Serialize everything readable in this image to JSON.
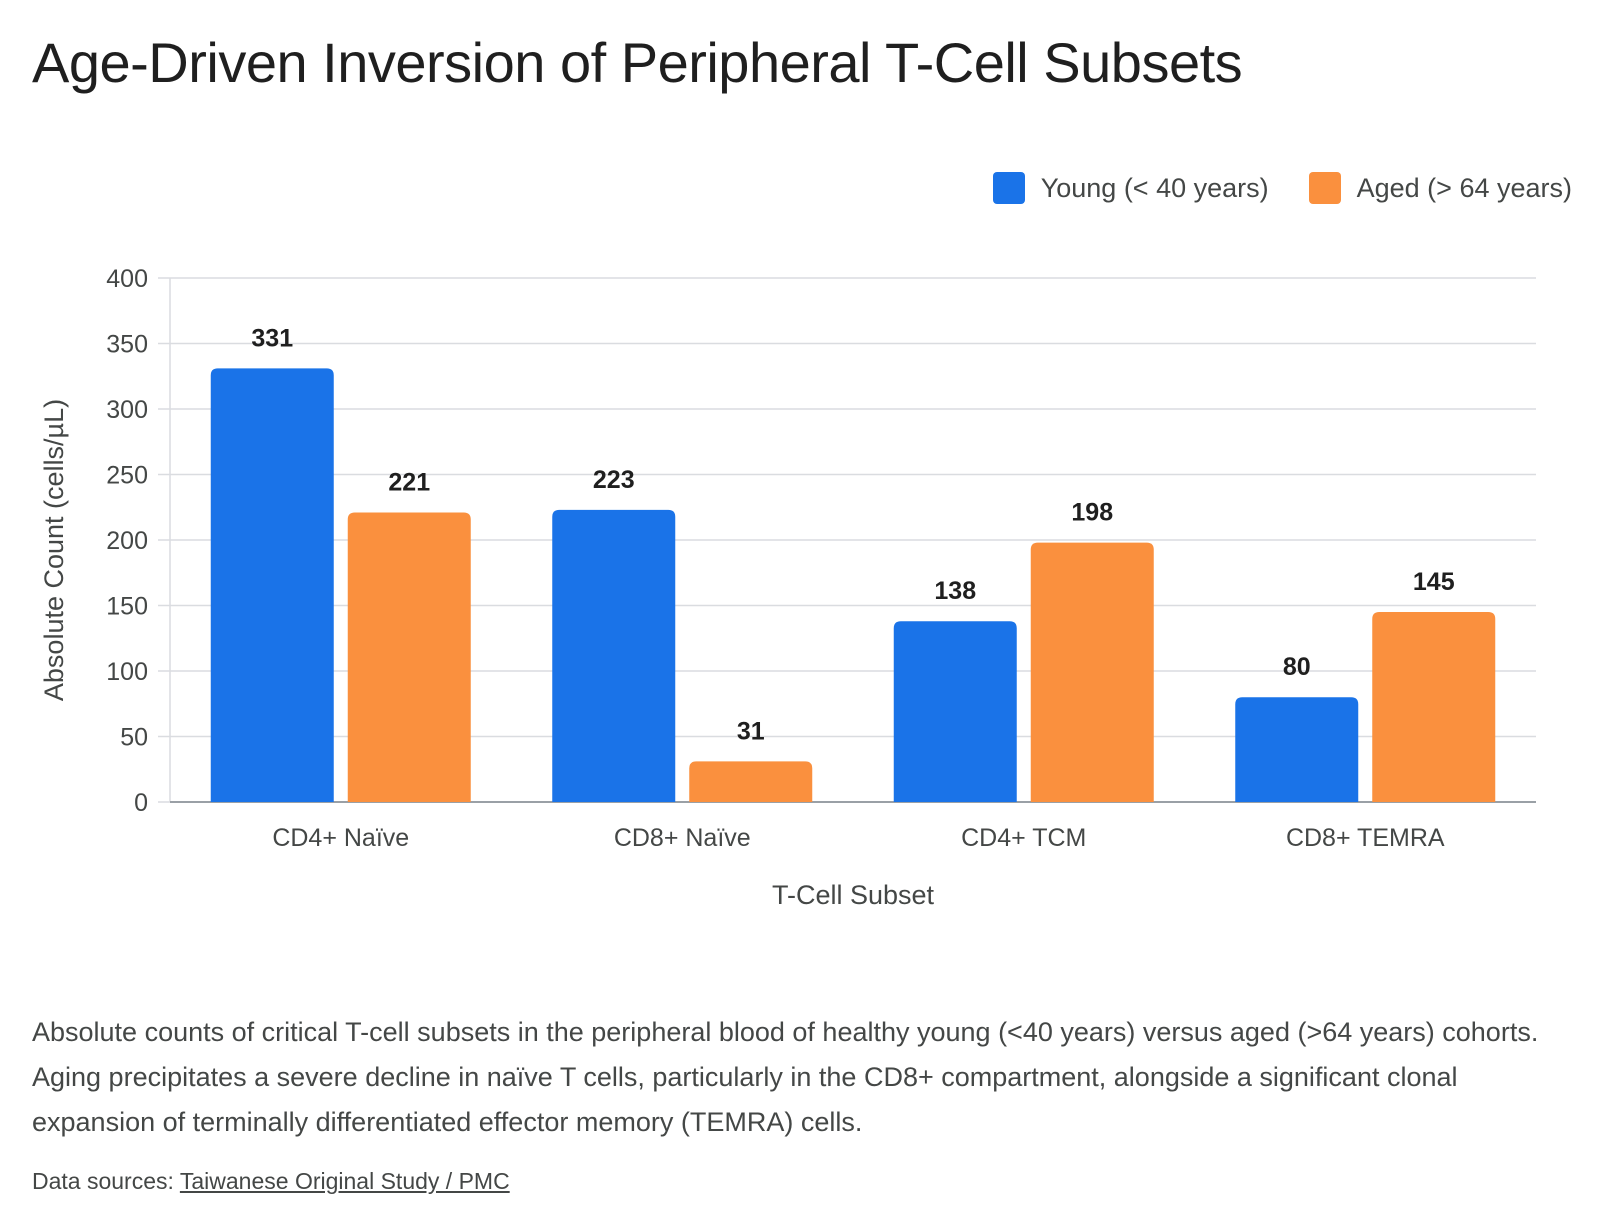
{
  "title": "Age-Driven Inversion of Peripheral T-Cell Subsets",
  "colors": {
    "young": "#1a73e8",
    "aged": "#fa903e",
    "grid": "#dadce0",
    "axis": "#9aa0a6"
  },
  "chart_data": {
    "type": "bar",
    "title": "Age-Driven Inversion of Peripheral T-Cell Subsets",
    "xlabel": "T-Cell Subset",
    "ylabel": "Absolute Count (cells/µL)",
    "ylim": [
      0,
      400
    ],
    "yticks": [
      0,
      50,
      100,
      150,
      200,
      250,
      300,
      350,
      400
    ],
    "categories": [
      "CD4+ Naïve",
      "CD8+ Naïve",
      "CD4+ TCM",
      "CD8+ TEMRA"
    ],
    "series": [
      {
        "name": "Young (< 40 years)",
        "values": [
          331,
          223,
          138,
          80
        ]
      },
      {
        "name": "Aged (> 64 years)",
        "values": [
          221,
          31,
          198,
          145
        ]
      }
    ],
    "grid": true,
    "legend": "top-right",
    "data_labels": true
  },
  "caption": "Absolute counts of critical T-cell subsets in the peripheral blood of healthy young (<40 years) versus aged (>64 years) cohorts. Aging precipitates a severe decline in naïve T cells, particularly in the CD8+ compartment, alongside a significant clonal expansion of terminally differentiated effector memory (TEMRA) cells.",
  "sources": {
    "prefix": "Data sources: ",
    "link_text": "Taiwanese Original Study / PMC"
  }
}
